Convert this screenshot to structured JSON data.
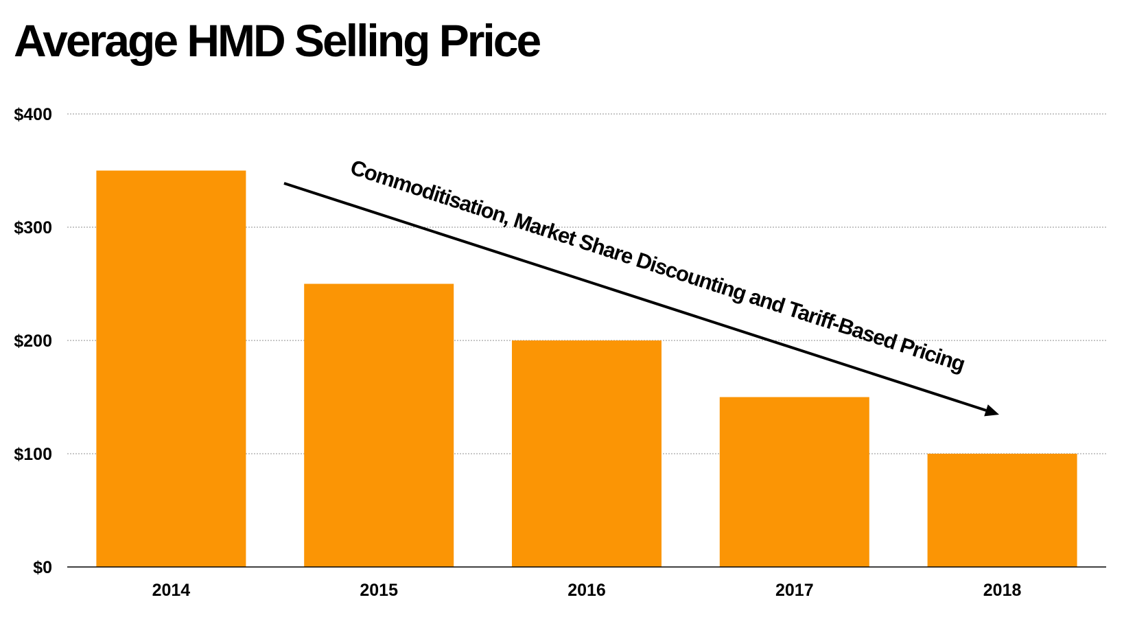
{
  "chart_data": {
    "type": "bar",
    "title": "Average HMD Selling Price",
    "categories": [
      "2014",
      "2015",
      "2016",
      "2017",
      "2018"
    ],
    "values": [
      350,
      250,
      200,
      150,
      100
    ],
    "ylim": [
      0,
      400
    ],
    "yticks": [
      0,
      100,
      200,
      300,
      400
    ],
    "ytick_labels": [
      "$0",
      "$100",
      "$200",
      "$300",
      "$400"
    ],
    "xlabel": "",
    "ylabel": "",
    "grid": true,
    "legend": "none",
    "bar_color": "#fb9505",
    "annotation": {
      "text": "Commoditisation, Market Share Discounting and Tariff-Based Pricing",
      "arrow": "down-right"
    }
  }
}
